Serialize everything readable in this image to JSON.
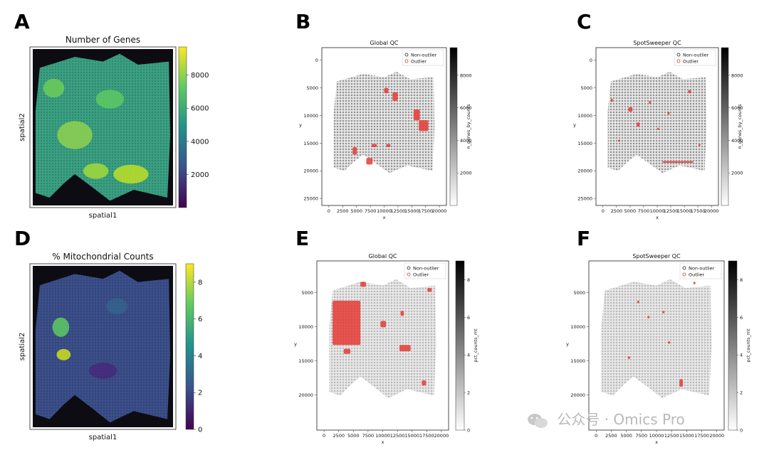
{
  "figure": {
    "watermark": "公众号 · Omics Pro",
    "colors": {
      "outlier": "#e53935",
      "nonoutlier": "#222222",
      "frame": "#222222"
    }
  },
  "chart_data": [
    {
      "panel": "A",
      "type": "heatmap",
      "title": "Number of Genes",
      "xlabel": "spatial1",
      "ylabel": "spatial2",
      "colormap": "viridis",
      "colorbar_ticks": [
        "2000",
        "4000",
        "6000",
        "8000"
      ],
      "clim": [
        0,
        9700
      ]
    },
    {
      "panel": "B",
      "type": "scatter",
      "title": "Global QC",
      "xlabel": "x",
      "ylabel": "y",
      "legend": [
        "Non-outlier",
        "Outlier"
      ],
      "legend_position": "top-right",
      "colorbar_label": "n_genes_by_counts",
      "colorbar_ticks": [
        "2000",
        "4000",
        "6000",
        "8000"
      ],
      "clim": [
        0,
        9700
      ],
      "xticks": [
        "0",
        "2500",
        "5000",
        "7500",
        "10000",
        "12500",
        "15000",
        "17500",
        "20000"
      ],
      "yticks": [
        "0",
        "5000",
        "10000",
        "15000",
        "20000",
        "25000"
      ],
      "xlim": [
        -500,
        20500
      ],
      "ylim": [
        -1500,
        25500
      ],
      "outlier_regions": [
        "top-center",
        "right-middle",
        "left-bottom",
        "bottom-center"
      ]
    },
    {
      "panel": "C",
      "type": "scatter",
      "title": "SpotSweeper QC",
      "xlabel": "x",
      "ylabel": "y",
      "legend": [
        "Non-outlier",
        "Outlier"
      ],
      "legend_position": "top-right",
      "colorbar_label": "n_genes_by_counts",
      "colorbar_ticks": [
        "2000",
        "4000",
        "6000",
        "8000"
      ],
      "clim": [
        0,
        9700
      ],
      "xticks": [
        "0",
        "2500",
        "5000",
        "7500",
        "10000",
        "12500",
        "15000",
        "17500",
        "20000"
      ],
      "yticks": [
        "0",
        "5000",
        "10000",
        "15000",
        "20000",
        "25000"
      ],
      "xlim": [
        -500,
        20500
      ],
      "ylim": [
        -1500,
        25500
      ],
      "outlier_regions": [
        "scattered",
        "bottom-border"
      ]
    },
    {
      "panel": "D",
      "type": "heatmap",
      "title": "% Mitochondrial Counts",
      "xlabel": "spatial1",
      "ylabel": "spatial2",
      "colormap": "viridis",
      "colorbar_ticks": [
        "0",
        "2",
        "4",
        "6",
        "8"
      ],
      "clim": [
        0,
        9
      ]
    },
    {
      "panel": "E",
      "type": "scatter",
      "title": "Global QC",
      "xlabel": "x",
      "ylabel": "y",
      "legend": [
        "Non-outlier",
        "Outlier"
      ],
      "legend_position": "top-right",
      "colorbar_label": "pct_counts_mt",
      "colorbar_ticks": [
        "0",
        "2",
        "4",
        "6",
        "8"
      ],
      "clim": [
        0,
        9
      ],
      "xticks": [
        "0",
        "2500",
        "5000",
        "7500",
        "10000",
        "12500",
        "15000",
        "17500",
        "20000"
      ],
      "yticks": [
        "5000",
        "10000",
        "15000",
        "20000"
      ],
      "xlim": [
        -500,
        20500
      ],
      "ylim": [
        1000,
        24500
      ],
      "outlier_regions": [
        "left-large-block",
        "scattered-right"
      ]
    },
    {
      "panel": "F",
      "type": "scatter",
      "title": "SpotSweeper QC",
      "xlabel": "x",
      "ylabel": "y",
      "legend": [
        "Non-outlier",
        "Outlier"
      ],
      "legend_position": "top-right",
      "colorbar_label": "pct_counts_mt",
      "colorbar_ticks": [
        "0",
        "2",
        "4",
        "6",
        "8"
      ],
      "clim": [
        0,
        9
      ],
      "xticks": [
        "0",
        "2500",
        "5000",
        "7500",
        "10000",
        "12500",
        "15000",
        "17500",
        "20000"
      ],
      "yticks": [
        "5000",
        "10000",
        "15000",
        "20000"
      ],
      "xlim": [
        -500,
        20500
      ],
      "ylim": [
        1000,
        24500
      ],
      "outlier_regions": [
        "few-scattered"
      ]
    }
  ]
}
